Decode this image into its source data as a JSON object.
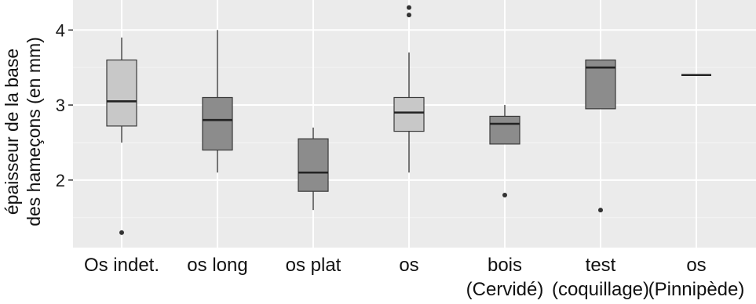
{
  "chart_data": {
    "type": "boxplot",
    "title": "",
    "xlabel": "",
    "ylabel_lines": [
      "épaisseur de la base",
      "des hameçons (en mm)"
    ],
    "ylim": [
      1.1,
      4.4
    ],
    "yticks": [
      2,
      3,
      4
    ],
    "grid": true,
    "colors": {
      "panel_bg": "#ebebeb",
      "grid_major": "#ffffff",
      "grid_minor": "#f4f4f4",
      "box_light": "#c8c8c8",
      "box_dark": "#8c8c8c",
      "box_edge": "#3a3a3a",
      "outlier": "#333333"
    },
    "categories": [
      {
        "label_lines": [
          "Os indet."
        ],
        "fill": "light",
        "q1": 2.72,
        "median": 3.05,
        "q3": 3.6,
        "whisker_low": 2.5,
        "whisker_high": 3.9,
        "outliers": [
          1.3
        ]
      },
      {
        "label_lines": [
          "os long"
        ],
        "fill": "dark",
        "q1": 2.4,
        "median": 2.8,
        "q3": 3.1,
        "whisker_low": 2.1,
        "whisker_high": 4.0,
        "outliers": []
      },
      {
        "label_lines": [
          "os plat"
        ],
        "fill": "dark",
        "q1": 1.85,
        "median": 2.1,
        "q3": 2.55,
        "whisker_low": 1.6,
        "whisker_high": 2.7,
        "outliers": []
      },
      {
        "label_lines": [
          "os"
        ],
        "fill": "light",
        "q1": 2.65,
        "median": 2.9,
        "q3": 3.1,
        "whisker_low": 2.1,
        "whisker_high": 3.7,
        "outliers": [
          4.2,
          4.3
        ]
      },
      {
        "label_lines": [
          "bois",
          "(Cervidé)"
        ],
        "fill": "dark",
        "q1": 2.48,
        "median": 2.75,
        "q3": 2.85,
        "whisker_low": 2.48,
        "whisker_high": 3.0,
        "outliers": [
          1.8
        ]
      },
      {
        "label_lines": [
          "test",
          "(coquillage)"
        ],
        "fill": "dark",
        "q1": 2.95,
        "median": 3.5,
        "q3": 3.6,
        "whisker_low": 2.95,
        "whisker_high": 3.6,
        "outliers": [
          1.6
        ]
      },
      {
        "label_lines": [
          "os",
          "(Pinnipède)"
        ],
        "fill": "dark",
        "q1": 3.4,
        "median": 3.4,
        "q3": 3.4,
        "whisker_low": 3.4,
        "whisker_high": 3.4,
        "outliers": []
      }
    ]
  }
}
